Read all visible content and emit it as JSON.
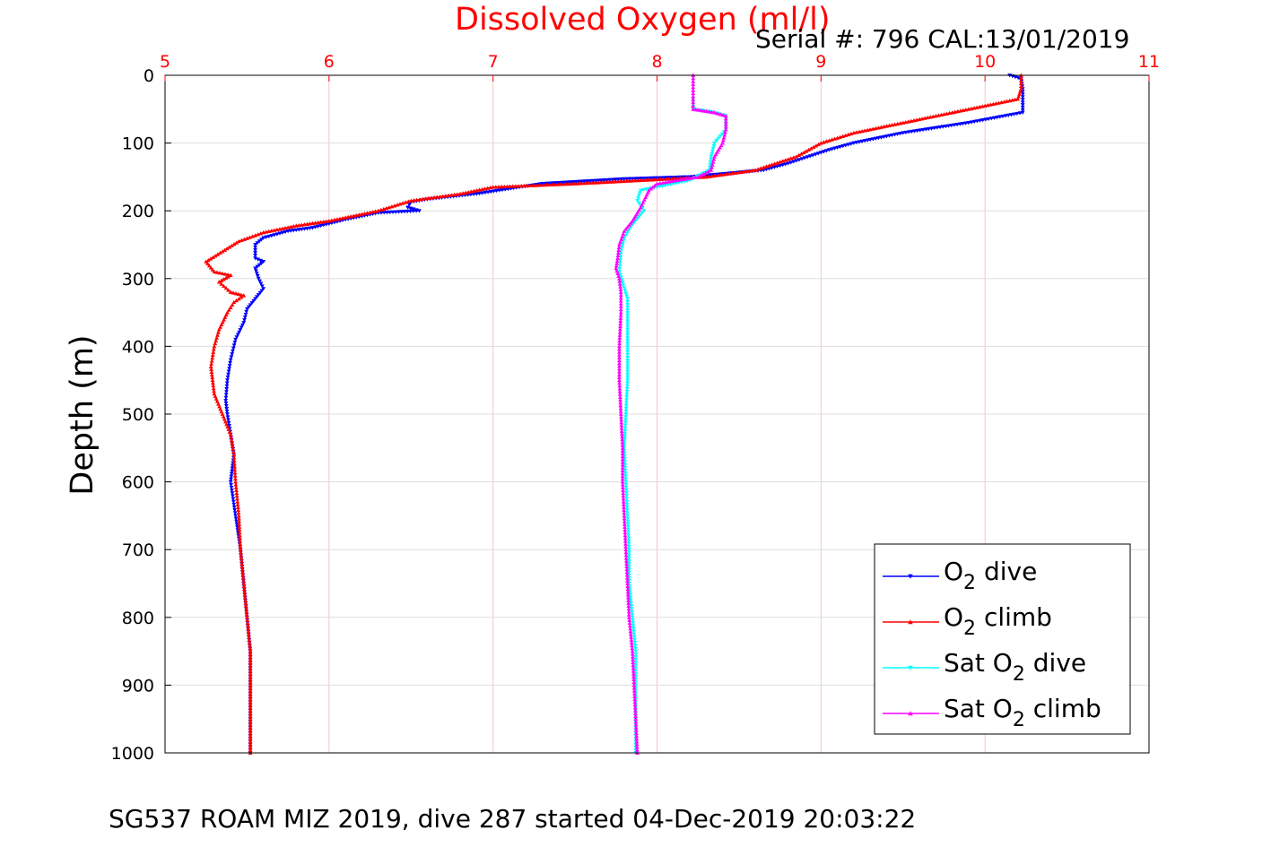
{
  "chart_data": {
    "type": "line",
    "title": "Dissolved Oxygen (ml/l)",
    "subtitle": "Serial #: 796  CAL:13/01/2019",
    "footer": "SG537 ROAM MIZ 2019, dive 287 started 04-Dec-2019 20:03:22",
    "xlabel": "",
    "ylabel": "Depth (m)",
    "xlim": [
      5,
      11
    ],
    "ylim": [
      0,
      1000
    ],
    "y_reversed": true,
    "x_axis_position": "top",
    "xticks": [
      5,
      6,
      7,
      8,
      9,
      10,
      11
    ],
    "yticks": [
      0,
      100,
      200,
      300,
      400,
      500,
      600,
      700,
      800,
      900,
      1000
    ],
    "grid": true,
    "legend_position": "bottom-right",
    "colors": {
      "title": "#ff0000",
      "xticks": "#ff0000",
      "grid_x": "#f2c6cf",
      "grid_y": "#dddddd"
    },
    "series": [
      {
        "name": "O2 dive",
        "legend_main": "O",
        "legend_sub": "2",
        "legend_rest": " dive",
        "color": "#0000ff",
        "marker": "triangle-down",
        "points": [
          [
            10.15,
            0
          ],
          [
            10.22,
            5
          ],
          [
            10.23,
            20
          ],
          [
            10.23,
            40
          ],
          [
            10.23,
            55
          ],
          [
            9.9,
            70
          ],
          [
            9.5,
            85
          ],
          [
            9.2,
            100
          ],
          [
            9.05,
            110
          ],
          [
            8.8,
            130
          ],
          [
            8.65,
            140
          ],
          [
            8.2,
            150
          ],
          [
            7.8,
            153
          ],
          [
            7.3,
            160
          ],
          [
            6.9,
            175
          ],
          [
            6.6,
            183
          ],
          [
            6.5,
            187
          ],
          [
            6.48,
            195
          ],
          [
            6.55,
            200
          ],
          [
            6.3,
            203
          ],
          [
            6.1,
            213
          ],
          [
            5.9,
            225
          ],
          [
            5.75,
            230
          ],
          [
            5.6,
            240
          ],
          [
            5.55,
            250
          ],
          [
            5.55,
            270
          ],
          [
            5.6,
            275
          ],
          [
            5.55,
            285
          ],
          [
            5.57,
            300
          ],
          [
            5.6,
            315
          ],
          [
            5.55,
            330
          ],
          [
            5.5,
            345
          ],
          [
            5.48,
            365
          ],
          [
            5.43,
            390
          ],
          [
            5.4,
            420
          ],
          [
            5.38,
            450
          ],
          [
            5.37,
            480
          ],
          [
            5.38,
            500
          ],
          [
            5.4,
            530
          ],
          [
            5.42,
            560
          ],
          [
            5.4,
            600
          ],
          [
            5.43,
            650
          ],
          [
            5.46,
            700
          ],
          [
            5.48,
            750
          ],
          [
            5.5,
            800
          ],
          [
            5.52,
            850
          ],
          [
            5.52,
            900
          ],
          [
            5.52,
            950
          ],
          [
            5.52,
            1000
          ]
        ]
      },
      {
        "name": "O2 climb",
        "legend_main": "O",
        "legend_sub": "2",
        "legend_rest": " climb",
        "color": "#ff0000",
        "marker": "triangle-up",
        "points": [
          [
            10.22,
            0
          ],
          [
            10.22,
            20
          ],
          [
            10.2,
            35
          ],
          [
            10.0,
            45
          ],
          [
            9.7,
            60
          ],
          [
            9.4,
            75
          ],
          [
            9.2,
            85
          ],
          [
            9.0,
            100
          ],
          [
            8.85,
            120
          ],
          [
            8.6,
            140
          ],
          [
            8.3,
            150
          ],
          [
            7.9,
            155
          ],
          [
            7.5,
            160
          ],
          [
            7.0,
            165
          ],
          [
            6.8,
            175
          ],
          [
            6.5,
            185
          ],
          [
            6.3,
            200
          ],
          [
            6.0,
            215
          ],
          [
            5.8,
            222
          ],
          [
            5.6,
            232
          ],
          [
            5.45,
            245
          ],
          [
            5.35,
            260
          ],
          [
            5.25,
            275
          ],
          [
            5.3,
            290
          ],
          [
            5.4,
            295
          ],
          [
            5.33,
            305
          ],
          [
            5.4,
            320
          ],
          [
            5.48,
            325
          ],
          [
            5.42,
            335
          ],
          [
            5.38,
            350
          ],
          [
            5.33,
            375
          ],
          [
            5.3,
            400
          ],
          [
            5.28,
            430
          ],
          [
            5.3,
            470
          ],
          [
            5.35,
            500
          ],
          [
            5.4,
            530
          ],
          [
            5.42,
            560
          ],
          [
            5.43,
            600
          ],
          [
            5.45,
            650
          ],
          [
            5.46,
            700
          ],
          [
            5.48,
            750
          ],
          [
            5.5,
            800
          ],
          [
            5.52,
            850
          ],
          [
            5.52,
            900
          ],
          [
            5.52,
            950
          ],
          [
            5.52,
            1000
          ]
        ]
      },
      {
        "name": "Sat O2 dive",
        "legend_main": "Sat O",
        "legend_sub": "2",
        "legend_rest": " dive",
        "color": "#00ffff",
        "marker": "triangle-down",
        "points": [
          [
            8.22,
            35
          ],
          [
            8.22,
            50
          ],
          [
            8.35,
            55
          ],
          [
            8.42,
            60
          ],
          [
            8.42,
            80
          ],
          [
            8.35,
            100
          ],
          [
            8.33,
            120
          ],
          [
            8.32,
            140
          ],
          [
            8.2,
            155
          ],
          [
            8.0,
            165
          ],
          [
            7.9,
            170
          ],
          [
            7.88,
            185
          ],
          [
            7.92,
            200
          ],
          [
            7.85,
            220
          ],
          [
            7.8,
            240
          ],
          [
            7.78,
            260
          ],
          [
            7.77,
            290
          ],
          [
            7.82,
            330
          ],
          [
            7.82,
            400
          ],
          [
            7.82,
            450
          ],
          [
            7.81,
            500
          ],
          [
            7.8,
            550
          ],
          [
            7.81,
            600
          ],
          [
            7.82,
            650
          ],
          [
            7.83,
            700
          ],
          [
            7.83,
            750
          ],
          [
            7.85,
            800
          ],
          [
            7.87,
            850
          ],
          [
            7.87,
            900
          ],
          [
            7.87,
            950
          ],
          [
            7.87,
            1000
          ]
        ]
      },
      {
        "name": "Sat O2 climb",
        "legend_main": "Sat O",
        "legend_sub": "2",
        "legend_rest": " climb",
        "color": "#ff00ff",
        "marker": "triangle-up",
        "points": [
          [
            8.22,
            0
          ],
          [
            8.22,
            40
          ],
          [
            8.22,
            50
          ],
          [
            8.35,
            55
          ],
          [
            8.42,
            60
          ],
          [
            8.42,
            80
          ],
          [
            8.4,
            100
          ],
          [
            8.35,
            120
          ],
          [
            8.33,
            140
          ],
          [
            8.25,
            150
          ],
          [
            8.0,
            160
          ],
          [
            7.95,
            170
          ],
          [
            7.93,
            180
          ],
          [
            7.9,
            195
          ],
          [
            7.85,
            215
          ],
          [
            7.8,
            230
          ],
          [
            7.77,
            250
          ],
          [
            7.76,
            270
          ],
          [
            7.75,
            285
          ],
          [
            7.77,
            300
          ],
          [
            7.78,
            320
          ],
          [
            7.78,
            350
          ],
          [
            7.77,
            400
          ],
          [
            7.77,
            450
          ],
          [
            7.78,
            500
          ],
          [
            7.79,
            550
          ],
          [
            7.79,
            600
          ],
          [
            7.8,
            650
          ],
          [
            7.81,
            700
          ],
          [
            7.82,
            750
          ],
          [
            7.83,
            800
          ],
          [
            7.85,
            850
          ],
          [
            7.86,
            900
          ],
          [
            7.87,
            950
          ],
          [
            7.88,
            1000
          ]
        ]
      }
    ]
  }
}
